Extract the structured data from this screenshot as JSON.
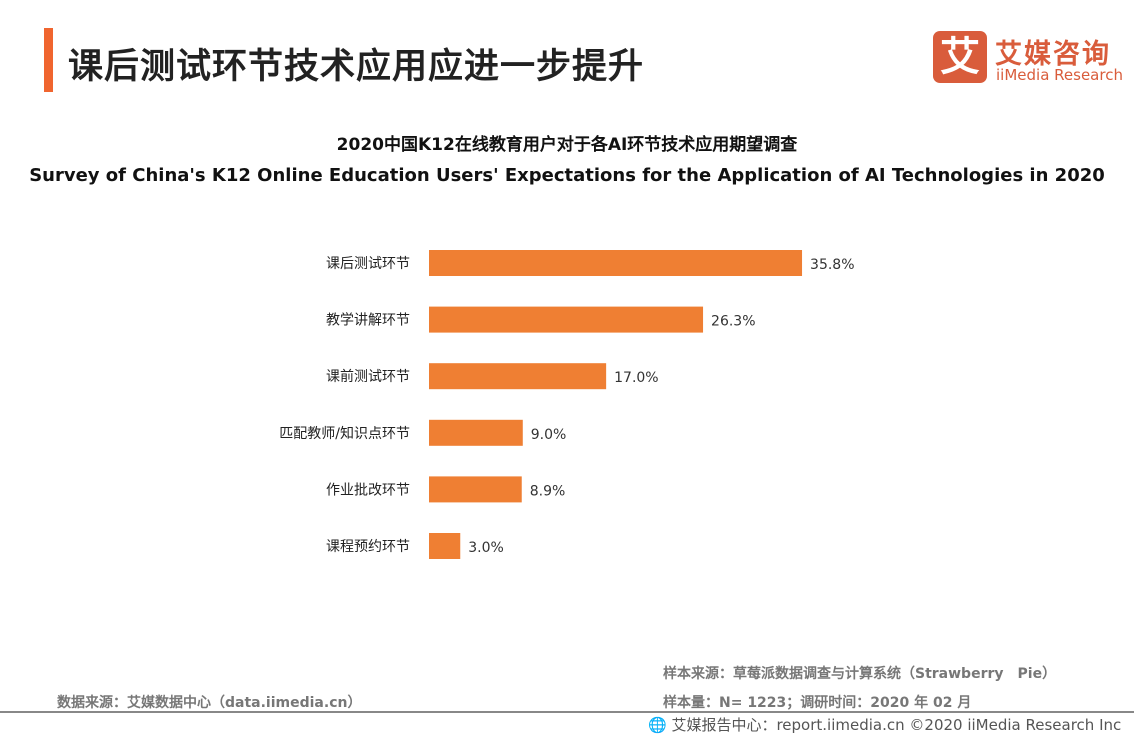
{
  "header": {
    "title": "课后测试环节技术应用应进一步提升",
    "logo_mark": "艾",
    "logo_cn": "艾媒咨询",
    "logo_en": "iiMedia Research"
  },
  "chart_data": {
    "type": "bar",
    "orientation": "horizontal",
    "title": "2020中国K12在线教育用户对于各AI环节技术应用期望调查",
    "subtitle": "Survey of China's K12 Online Education Users' Expectations for the Application of AI Technologies in 2020",
    "categories": [
      "课后测试环节",
      "教学讲解环节",
      "课前测试环节",
      "匹配教师/知识点环节",
      "作业批改环节",
      "课程预约环节"
    ],
    "values": [
      35.8,
      26.3,
      17.0,
      9.0,
      8.9,
      3.0
    ],
    "labels": [
      "35.8%",
      "26.3%",
      "17.0%",
      "9.0%",
      "8.9%",
      "3.0%"
    ],
    "unit": "%",
    "color": "#ef7f33",
    "grid": false
  },
  "footer": {
    "data_source": "数据来源：艾媒数据中心（data.iimedia.cn）",
    "sample_source": "样本来源：草莓派数据调查与计算系统（Strawberry　Pie）",
    "sample_size": "样本量：N= 1223；调研时间：2020 年 02 月",
    "copyright": "艾媒报告中心：report.iimedia.cn  ©2020  iiMedia Research  Inc"
  }
}
